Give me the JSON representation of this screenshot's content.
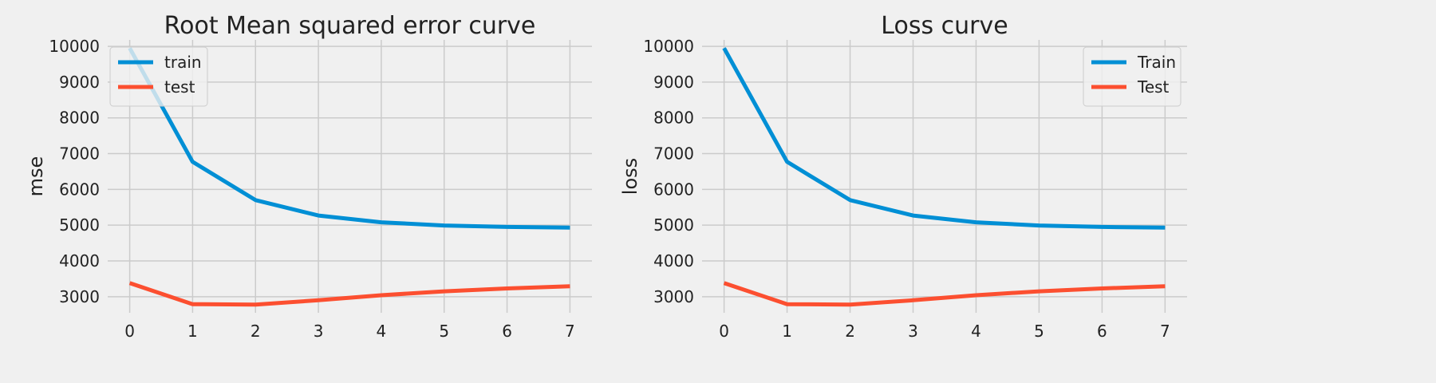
{
  "chart_data": [
    {
      "type": "line",
      "title": "Root Mean squared error curve",
      "xlabel": "",
      "ylabel": "mse",
      "x": [
        0,
        1,
        2,
        3,
        4,
        5,
        6,
        7
      ],
      "xticks": [
        "0",
        "1",
        "2",
        "3",
        "4",
        "5",
        "6",
        "7"
      ],
      "yticks": [
        "3000",
        "4000",
        "5000",
        "6000",
        "7000",
        "8000",
        "9000",
        "10000"
      ],
      "xlim": [
        -0.35,
        7.35
      ],
      "ylim": [
        2550,
        10180
      ],
      "grid": true,
      "legend_position": "top-left",
      "series": [
        {
          "name": "train",
          "color": "#008fd5",
          "values": [
            9950,
            6770,
            5700,
            5270,
            5080,
            4990,
            4950,
            4930
          ]
        },
        {
          "name": "test",
          "color": "#fc4f30",
          "values": [
            3380,
            2790,
            2780,
            2900,
            3040,
            3150,
            3230,
            3290
          ]
        }
      ]
    },
    {
      "type": "line",
      "title": "Loss curve",
      "xlabel": "",
      "ylabel": "loss",
      "x": [
        0,
        1,
        2,
        3,
        4,
        5,
        6,
        7
      ],
      "xticks": [
        "0",
        "1",
        "2",
        "3",
        "4",
        "5",
        "6",
        "7"
      ],
      "yticks": [
        "3000",
        "4000",
        "5000",
        "6000",
        "7000",
        "8000",
        "9000",
        "10000"
      ],
      "xlim": [
        -0.35,
        7.35
      ],
      "ylim": [
        2550,
        10180
      ],
      "grid": true,
      "legend_position": "top-right",
      "series": [
        {
          "name": "Train",
          "color": "#008fd5",
          "values": [
            9950,
            6770,
            5700,
            5270,
            5080,
            4990,
            4950,
            4930
          ]
        },
        {
          "name": "Test",
          "color": "#fc4f30",
          "values": [
            3380,
            2790,
            2780,
            2900,
            3040,
            3150,
            3230,
            3290
          ]
        }
      ]
    }
  ]
}
